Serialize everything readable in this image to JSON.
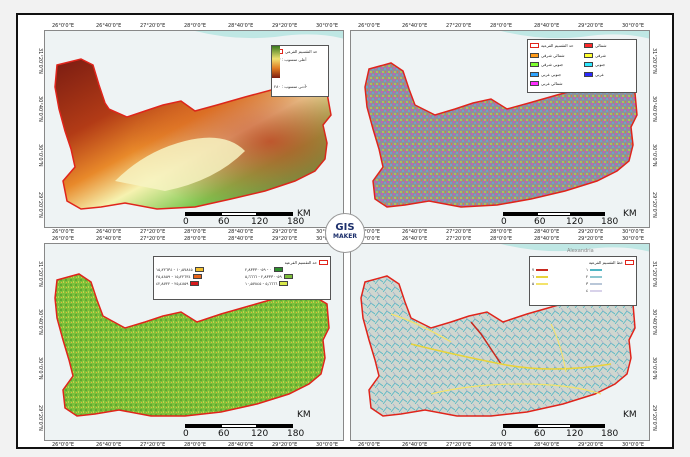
{
  "x_ticks": [
    "26°0'0\"E",
    "26°40'0\"E",
    "27°20'0\"E",
    "28°0'0\"E",
    "28°40'0\"E",
    "29°20'0\"E",
    "30°0'0\"E"
  ],
  "y_ticks": [
    "31°20'0\"N",
    "30°40'0\"N",
    "30°0'0\"N",
    "29°20'0\"N"
  ],
  "scale": {
    "labels": [
      "0",
      "60",
      "120",
      "180"
    ],
    "unit": "KM"
  },
  "logo": {
    "line1": "GIS",
    "line2": "MAKER"
  },
  "place_label": "Alexandria",
  "colors": {
    "boundary": "#e0241b",
    "sea": "#bfe7e4",
    "land": "#eef3f4"
  },
  "elevation": {
    "legend": {
      "boundary": "حد التقسيم الفرعي",
      "high": "أعلى منسوب : ٣٨٣",
      "low": "أدنى منسوب : ٢٨٠-"
    },
    "ramp": [
      "#7a1c12",
      "#b23b16",
      "#e8892a",
      "#f6f2b0",
      "#7ec850",
      "#2b9b4d"
    ]
  },
  "aspect": {
    "legend": [
      {
        "label": "حد التقسيم الفرعية",
        "color": "#ffffff"
      },
      {
        "label": "شمالي",
        "color": "#ff2a2a"
      },
      {
        "label": "شمالي شرقي",
        "color": "#ff9b1a"
      },
      {
        "label": "شرقي",
        "color": "#ffff2e"
      },
      {
        "label": "جنوبي شرقي",
        "color": "#7eff2e"
      },
      {
        "label": "جنوبي",
        "color": "#2ee7ff"
      },
      {
        "label": "جنوبي غربي",
        "color": "#2fa4ff"
      },
      {
        "label": "غربي",
        "color": "#2a2aff"
      },
      {
        "label": "شمالي غربي",
        "color": "#ff2eff"
      }
    ]
  },
  "slope": {
    "legend_title": "حد التقسيم الفرعية",
    "classes": [
      {
        "label": "٠ - ٢٫٨٣٣٣٠٠٥٩",
        "color": "#2e8f2e"
      },
      {
        "label": "٢٫٨٣٣٣٠٠٥٩ - ٥٫٦٦٦٦",
        "color": "#7dbf3a"
      },
      {
        "label": "٥٫٦٦٦٦ - ١٠٫٥٧٨٤٥",
        "color": "#d8e84a"
      },
      {
        "label": "١٠٫٥٧٨٤٥ - ١٥٫٢٢٦٣٤",
        "color": "#f2c030"
      },
      {
        "label": "١٥٫٢٢٦٣٤ - ٢٥٫٤٨٥٩",
        "color": "#e8641a"
      },
      {
        "label": "٢٥٫٤٨٥٩ - ٤٢٫٨٧٢٢",
        "color": "#d7191c"
      }
    ]
  },
  "streams": {
    "legend_title": "خط التقسيم الفرعية",
    "orders": [
      {
        "label": "١",
        "color": "#4db6c4"
      },
      {
        "label": "٢",
        "color": "#8cc7d0"
      },
      {
        "label": "٣",
        "color": "#b9c7d8"
      },
      {
        "label": "٤",
        "color": "#d8d2ea"
      },
      {
        "label": "٥",
        "color": "#f3e36b"
      },
      {
        "label": "٦",
        "color": "#e8d33a"
      },
      {
        "label": "٧",
        "color": "#c8281e"
      }
    ]
  }
}
